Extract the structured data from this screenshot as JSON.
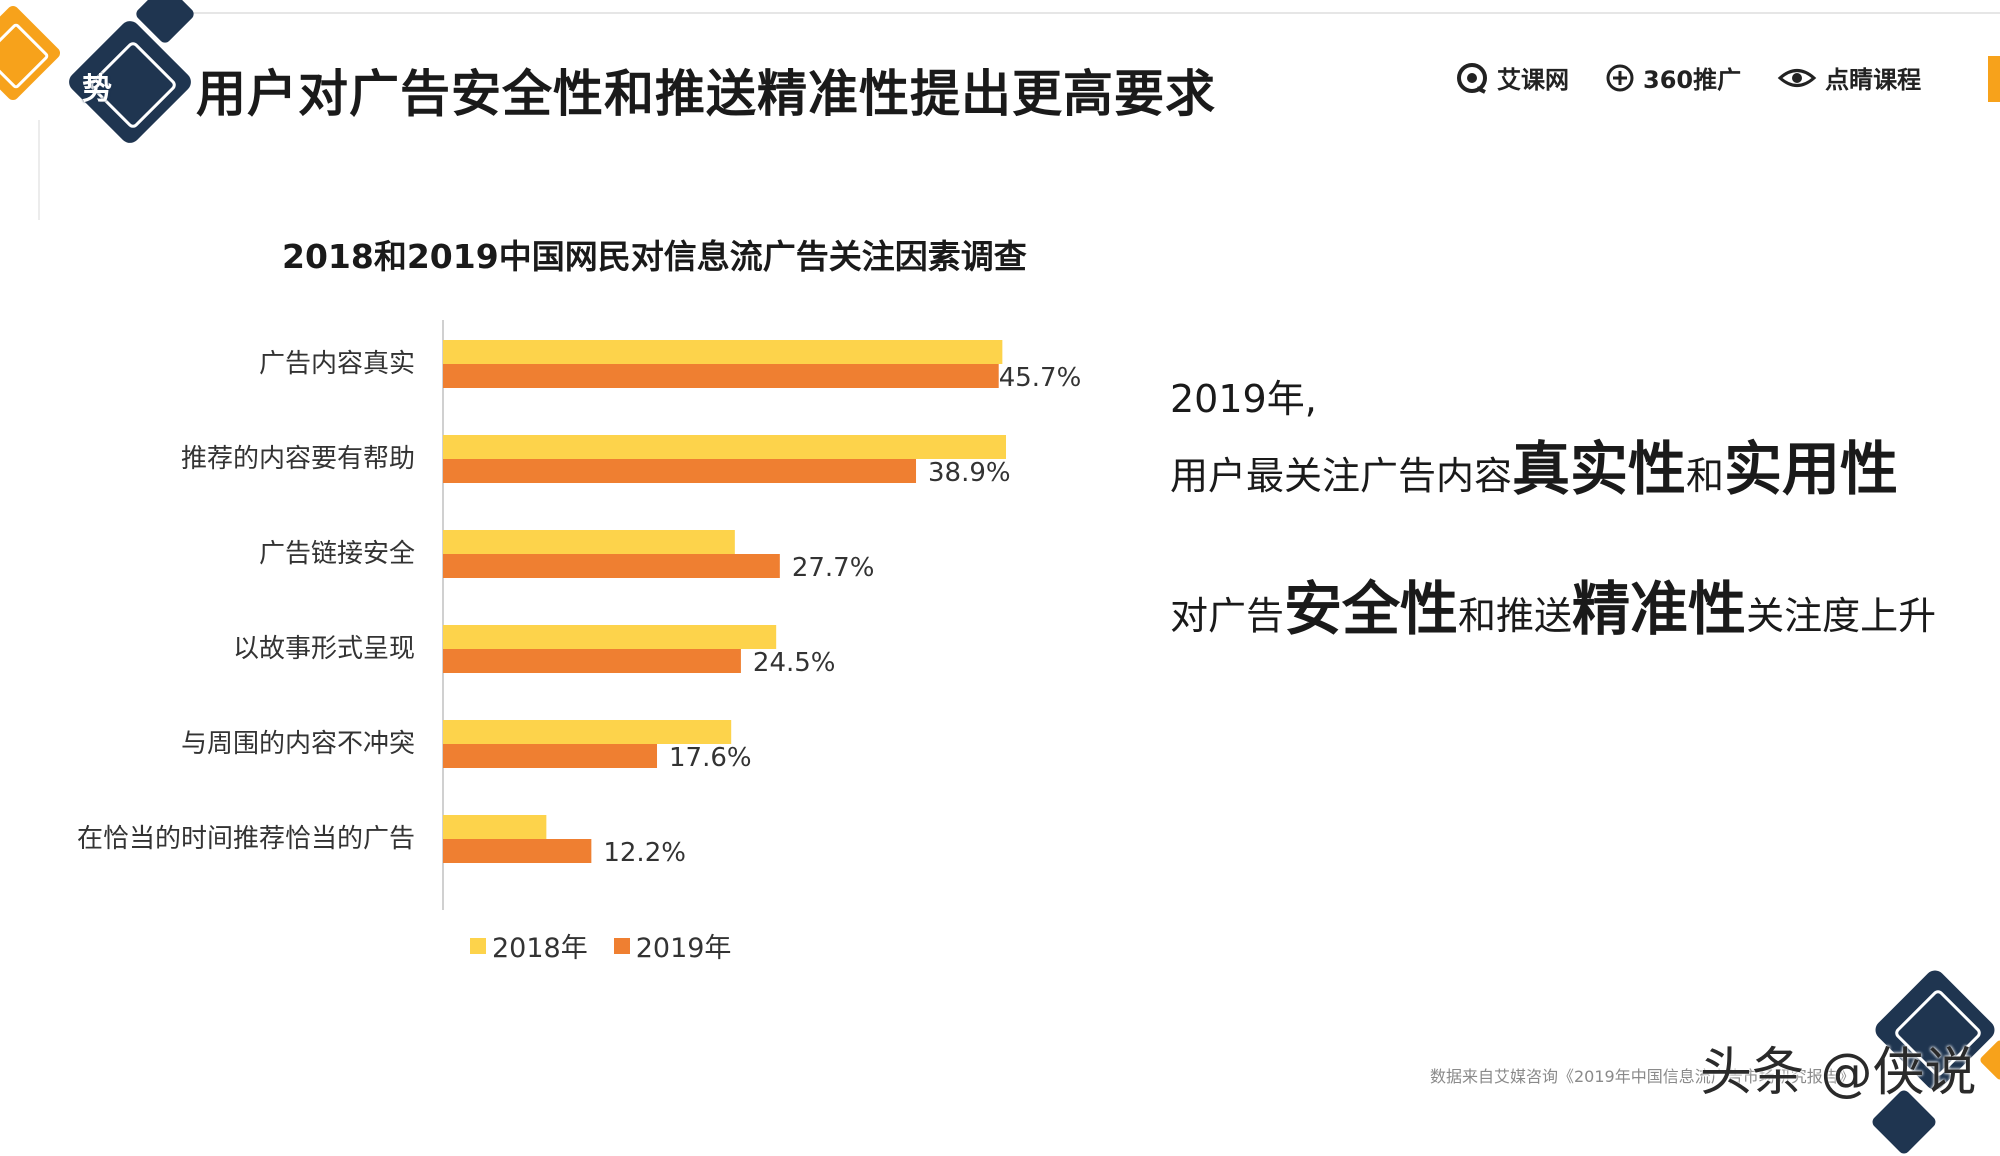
{
  "header": {
    "corner_char": "势",
    "title": "用户对广告安全性和推送精准性提出更高要求",
    "brands": [
      "艾课网",
      "360推广",
      "点睛课程"
    ]
  },
  "colors": {
    "series_2018": "#fdd34b",
    "series_2019": "#ef7f31",
    "navy": "#1f3550",
    "accent": "#f7a21b"
  },
  "chart_data": {
    "type": "bar",
    "orientation": "horizontal",
    "title": "2018和2019中国网民对信息流广告关注因素调查",
    "categories": [
      "广告内容真实",
      "推荐的内容要有帮助",
      "广告链接安全",
      "以故事形式呈现",
      "与周围的内容不冲突",
      "在恰当的时间推荐恰当的广告"
    ],
    "series": [
      {
        "name": "2018年",
        "values": [
          46.0,
          46.3,
          24.0,
          27.4,
          23.7,
          8.5
        ],
        "labels": [
          "",
          "",
          "",
          "",
          "",
          ""
        ]
      },
      {
        "name": "2019年",
        "values": [
          45.7,
          38.9,
          27.7,
          24.5,
          17.6,
          12.2
        ],
        "labels": [
          "45.7%",
          "38.9%",
          "27.7%",
          "24.5%",
          "17.6%",
          "12.2%"
        ]
      }
    ],
    "xlim": [
      0,
      50
    ],
    "grid": false,
    "legend": "bottom"
  },
  "insight": {
    "year": "2019年,",
    "line1_a": "用户最关注广告内容",
    "line1_b": "真实性",
    "line1_c": "和",
    "line1_d": "实用性",
    "line2_a": "对广告",
    "line2_b": "安全性",
    "line2_c": "和推送",
    "line2_d": "精准性",
    "line2_e": "关注度上升"
  },
  "footer": {
    "source": "数据来自艾媒咨询《2019年中国信息流广告市场研究报告》",
    "watermark": "头条 @侠说"
  }
}
